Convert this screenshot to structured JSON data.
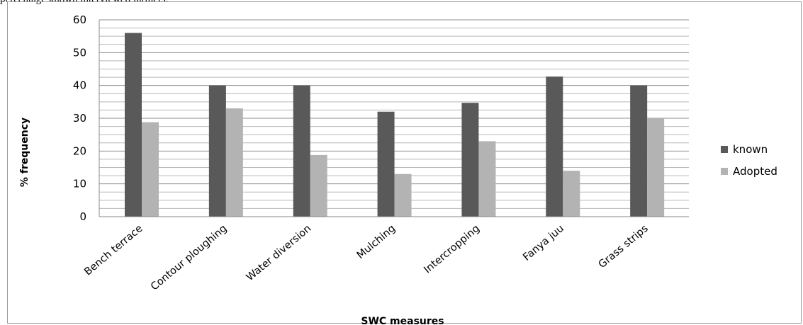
{
  "caption": "percentage known interviewed farmers.",
  "chart_data": {
    "type": "bar",
    "categories": [
      "Bench terrace",
      "Contour ploughing",
      "Water diversion",
      "Mulching",
      "Intercropping",
      "Fanya juu",
      "Grass strips"
    ],
    "series": [
      {
        "name": "known",
        "values": [
          56,
          40,
          40,
          32,
          34.7,
          42.7,
          40
        ],
        "color": "#595959"
      },
      {
        "name": "Adopted",
        "values": [
          28.8,
          33,
          18.8,
          13,
          23,
          14,
          30
        ],
        "color": "#b3b3b3"
      }
    ],
    "title": "",
    "xlabel": "SWC measures",
    "ylabel": "% frequency",
    "ylim": [
      0,
      60
    ],
    "yticks": [
      "0",
      "10",
      "20",
      "30",
      "40",
      "50",
      "60"
    ],
    "grid": true,
    "legend_position": "right"
  }
}
